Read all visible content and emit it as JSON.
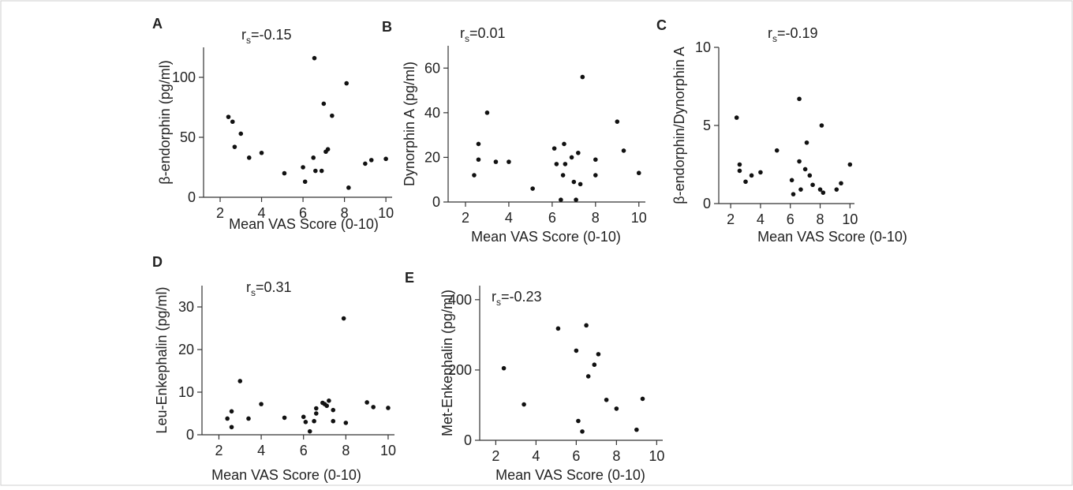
{
  "chart_data": [
    {
      "type": "scatter",
      "panel": "A",
      "annotation": "r<sub>s</sub>=-0.15",
      "rs_value": "=-0.15",
      "xlabel": "Mean VAS Score (0-10)",
      "ylabel": "β-endorphin (pg/ml)",
      "xlim": [
        1.2,
        10.3
      ],
      "ylim": [
        0,
        125
      ],
      "xticks": [
        2,
        4,
        6,
        8,
        10
      ],
      "yticks": [
        0,
        50,
        100
      ],
      "x": [
        2.4,
        2.6,
        2.7,
        3.0,
        3.4,
        4.0,
        5.1,
        6.0,
        6.1,
        6.5,
        6.55,
        6.6,
        6.9,
        7.0,
        7.1,
        7.2,
        7.4,
        8.1,
        8.2,
        9.0,
        9.3,
        10.0
      ],
      "y": [
        67,
        63,
        42,
        53,
        33,
        37,
        20,
        25,
        13,
        33,
        116,
        22,
        22,
        78,
        38,
        40,
        68,
        95,
        8,
        28,
        31,
        32
      ]
    },
    {
      "type": "scatter",
      "panel": "B",
      "rs_value": "=0.01",
      "xlabel": "Mean VAS Score (0-10)",
      "ylabel": "Dynorphin A (pg/ml)",
      "xlim": [
        1.2,
        10.3
      ],
      "ylim": [
        0,
        70
      ],
      "xticks": [
        2,
        4,
        6,
        8,
        10
      ],
      "yticks": [
        0,
        20,
        40,
        60
      ],
      "x": [
        2.4,
        2.6,
        2.6,
        3.0,
        3.4,
        4.0,
        5.1,
        6.1,
        6.2,
        6.4,
        6.5,
        6.55,
        6.6,
        6.9,
        7.0,
        7.1,
        7.2,
        7.3,
        7.4,
        8.0,
        8.0,
        9.0,
        9.3,
        10.0
      ],
      "y": [
        12,
        19,
        26,
        40,
        18,
        18,
        6,
        24,
        17,
        1,
        12,
        26,
        17,
        20,
        9,
        1,
        22,
        8,
        56,
        19,
        12,
        36,
        23,
        13
      ]
    },
    {
      "type": "scatter",
      "panel": "C",
      "rs_value": "=-0.19",
      "xlabel": "Mean VAS Score (0-10)",
      "ylabel": "β-endorphin/Dynorphin A",
      "xlim": [
        1.2,
        10.3
      ],
      "ylim": [
        0,
        10
      ],
      "xticks": [
        2,
        4,
        6,
        8,
        10
      ],
      "yticks": [
        0,
        5,
        10
      ],
      "x": [
        2.4,
        2.6,
        2.6,
        3.0,
        3.4,
        4.0,
        5.1,
        6.1,
        6.2,
        6.6,
        6.6,
        6.7,
        7.0,
        7.1,
        7.3,
        7.5,
        8.0,
        8.1,
        8.2,
        9.1,
        9.4,
        10.0
      ],
      "y": [
        5.5,
        2.5,
        2.1,
        1.4,
        1.8,
        2.0,
        3.4,
        1.5,
        0.6,
        6.7,
        2.7,
        0.9,
        2.2,
        3.9,
        1.8,
        1.2,
        0.9,
        5.0,
        0.7,
        0.9,
        1.3,
        2.5
      ]
    },
    {
      "type": "scatter",
      "panel": "D",
      "rs_value": "=0.31",
      "xlabel": "Mean VAS Score (0-10)",
      "ylabel": "Leu-Enkephalin (pg/ml)",
      "xlim": [
        1.2,
        10.3
      ],
      "ylim": [
        0,
        35
      ],
      "xticks": [
        2,
        4,
        6,
        8,
        10
      ],
      "yticks": [
        0,
        10,
        20,
        30
      ],
      "x": [
        2.4,
        2.6,
        2.6,
        3.0,
        3.4,
        4.0,
        5.1,
        6.0,
        6.1,
        6.3,
        6.5,
        6.6,
        6.6,
        6.9,
        7.0,
        7.1,
        7.2,
        7.4,
        7.4,
        7.9,
        8.0,
        9.0,
        9.3,
        10.0
      ],
      "y": [
        3.8,
        5.5,
        1.8,
        12.6,
        3.8,
        7.2,
        4.0,
        4.2,
        3.0,
        0.8,
        3.2,
        6.2,
        5.0,
        7.5,
        7.2,
        6.8,
        8.0,
        5.8,
        3.2,
        27.3,
        2.8,
        7.6,
        6.5,
        6.3
      ]
    },
    {
      "type": "scatter",
      "panel": "E",
      "rs_value": "=-0.23",
      "xlabel": "Mean VAS Score (0-10)",
      "ylabel": "Met-Enkephalin (pg/ml)",
      "xlim": [
        1.2,
        10.3
      ],
      "ylim": [
        0,
        440
      ],
      "xticks": [
        2,
        4,
        6,
        8,
        10
      ],
      "yticks": [
        0,
        200,
        400
      ],
      "x": [
        2.4,
        3.4,
        5.1,
        6.0,
        6.1,
        6.3,
        6.5,
        6.6,
        6.9,
        7.1,
        7.5,
        8.0,
        9.0,
        9.3
      ],
      "y": [
        205,
        102,
        318,
        255,
        55,
        25,
        327,
        182,
        215,
        245,
        115,
        90,
        30,
        118
      ]
    }
  ]
}
